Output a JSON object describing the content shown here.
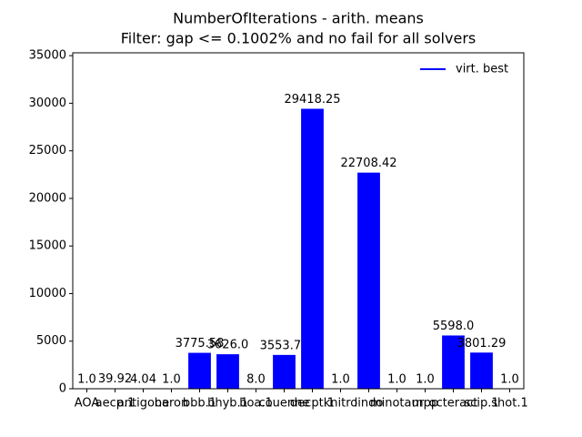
{
  "chart_data": {
    "type": "bar",
    "title": "NumberOfIterations - arith. means",
    "subtitle": "Filter: gap <= 0.1002% and no fail for all solvers",
    "categories": [
      "AOA",
      "aecp.1",
      "antigone",
      "baron",
      "bbb.1",
      "bhyb.1",
      "boa.1",
      "couenne",
      "decpt.1",
      "knitro",
      "lindo",
      "minotaur",
      "mpp",
      "octeract",
      "scip.1",
      "shot.1"
    ],
    "series": [
      {
        "name": "virt. best",
        "color": "#0000ff",
        "values": [
          1.0,
          39.92,
          4.04,
          1.0,
          3775.58,
          3626.0,
          8.0,
          3553.71,
          29418.25,
          1.0,
          22708.42,
          1.0,
          1.0,
          5598.0,
          3801.29,
          1.0
        ],
        "value_labels": [
          "1.0",
          "39.92",
          "4.04",
          "1.0",
          "3775.58",
          "3626.0",
          "8.0",
          "3553.71",
          "29418.25",
          "1.0",
          "22708.42",
          "1.0",
          "1.0",
          "5598.0",
          "3801.29",
          "1.0"
        ]
      }
    ],
    "ylim": [
      0,
      35300
    ],
    "yticks": [
      0,
      5000,
      10000,
      15000,
      20000,
      25000,
      30000,
      35000
    ],
    "grid": false,
    "legend": "upper right"
  }
}
